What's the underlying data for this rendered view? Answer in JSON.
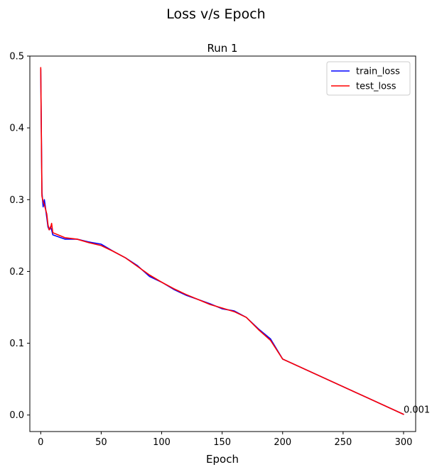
{
  "chart_data": {
    "type": "line",
    "suptitle": "Loss v/s Epoch",
    "title": "Run 1",
    "xlabel": "Epoch",
    "ylabel": "",
    "xlim": [
      -9,
      310
    ],
    "ylim": [
      -0.023,
      0.5
    ],
    "xticks": [
      0,
      50,
      100,
      150,
      200,
      250,
      300
    ],
    "yticks": [
      0.0,
      0.1,
      0.2,
      0.3,
      0.4,
      0.5
    ],
    "xtick_labels": [
      "0",
      "50",
      "100",
      "150",
      "200",
      "250",
      "300"
    ],
    "ytick_labels": [
      "0.0",
      "0.1",
      "0.2",
      "0.3",
      "0.4",
      "0.5"
    ],
    "grid": false,
    "legend_position": "top-right",
    "series": [
      {
        "name": "train_loss",
        "color": "#0000ff",
        "x": [
          0,
          1,
          2,
          3,
          5,
          6,
          7,
          8,
          9,
          10,
          20,
          30,
          40,
          50,
          60,
          70,
          80,
          90,
          100,
          110,
          120,
          130,
          140,
          150,
          160,
          170,
          180,
          190,
          200,
          300
        ],
        "y": [
          0.482,
          0.31,
          0.29,
          0.3,
          0.275,
          0.262,
          0.258,
          0.262,
          0.258,
          0.251,
          0.245,
          0.245,
          0.241,
          0.238,
          0.228,
          0.219,
          0.208,
          0.193,
          0.185,
          0.175,
          0.167,
          0.161,
          0.155,
          0.148,
          0.145,
          0.136,
          0.12,
          0.106,
          0.078,
          0.001
        ]
      },
      {
        "name": "test_loss",
        "color": "#ff0000",
        "x": [
          0,
          1,
          2,
          3,
          5,
          6,
          7,
          8,
          9,
          10,
          20,
          30,
          40,
          50,
          60,
          70,
          80,
          90,
          100,
          110,
          120,
          130,
          140,
          150,
          160,
          170,
          180,
          190,
          200,
          300
        ],
        "y": [
          0.484,
          0.305,
          0.297,
          0.293,
          0.28,
          0.265,
          0.258,
          0.26,
          0.267,
          0.254,
          0.247,
          0.245,
          0.24,
          0.236,
          0.228,
          0.219,
          0.207,
          0.195,
          0.185,
          0.176,
          0.168,
          0.161,
          0.154,
          0.149,
          0.144,
          0.136,
          0.119,
          0.104,
          0.078,
          0.001
        ]
      }
    ],
    "annotations": [
      {
        "text": "0.001",
        "x": 300,
        "y": 0.001
      }
    ]
  }
}
